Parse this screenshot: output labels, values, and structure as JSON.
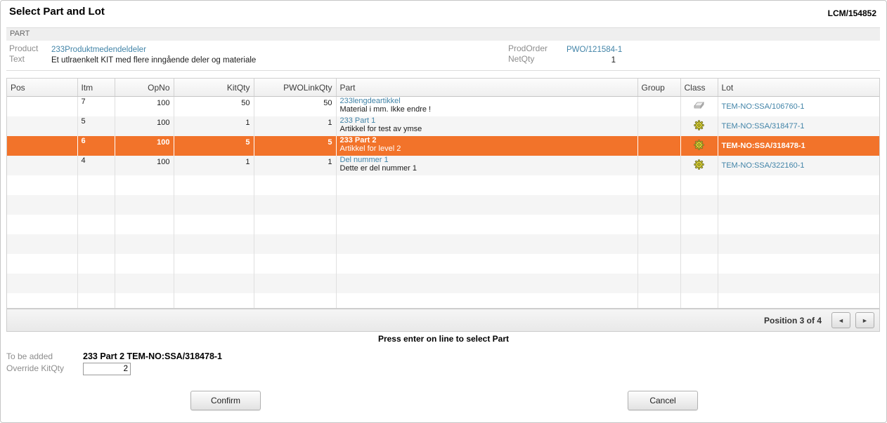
{
  "window": {
    "title": "Select Part and Lot",
    "reference": "LCM/154852"
  },
  "part_section": {
    "header": "PART",
    "product_label": "Product",
    "product_value": "233Produktmedendeldeler",
    "text_label": "Text",
    "text_value": "Et utlraenkelt KIT med flere inngående deler og materiale",
    "prodorder_label": "ProdOrder",
    "prodorder_value": "PWO/121584-1",
    "netqty_label": "NetQty",
    "netqty_value": "1"
  },
  "table": {
    "columns": [
      "Pos",
      "Itm",
      "OpNo",
      "KitQty",
      "PWOLinkQty",
      "Part",
      "Group",
      "Class",
      "Lot"
    ],
    "rows": [
      {
        "pos": "",
        "itm": "7",
        "opno": "100",
        "kitqty": "50",
        "pwolinkqty": "50",
        "part": "233lengdeartikkel",
        "part_desc": "Material i mm. Ikke endre !",
        "group": "",
        "class_icon": "eraser-icon",
        "lot": "TEM-NO:SSA/106760-1",
        "selected": false
      },
      {
        "pos": "",
        "itm": "5",
        "opno": "100",
        "kitqty": "1",
        "pwolinkqty": "1",
        "part": "233 Part 1",
        "part_desc": "Artikkel for test av ymse",
        "group": "",
        "class_icon": "gear-icon",
        "lot": "TEM-NO:SSA/318477-1",
        "selected": false
      },
      {
        "pos": "",
        "itm": "6",
        "opno": "100",
        "kitqty": "5",
        "pwolinkqty": "5",
        "part": "233 Part 2",
        "part_desc": "Artikkel for level 2",
        "group": "",
        "class_icon": "gear-icon",
        "lot": "TEM-NO:SSA/318478-1",
        "selected": true
      },
      {
        "pos": "",
        "itm": "4",
        "opno": "100",
        "kitqty": "1",
        "pwolinkqty": "1",
        "part": "Del nummer 1",
        "part_desc": "Dette er del nummer 1",
        "group": "",
        "class_icon": "gear-icon",
        "lot": "TEM-NO:SSA/322160-1",
        "selected": false
      }
    ]
  },
  "pager": {
    "position_text": "Position 3 of 4",
    "prev_icon": "◄",
    "next_icon": "►"
  },
  "hint": "Press enter on line to select Part",
  "form": {
    "to_be_added_label": "To be added",
    "to_be_added_value": "233 Part 2 TEM-NO:SSA/318478-1",
    "override_label": "Override KitQty",
    "override_value": "2"
  },
  "buttons": {
    "confirm": "Confirm",
    "cancel": "Cancel"
  },
  "colors": {
    "selected_row": "#F2732A",
    "link": "#4284A8",
    "row_stripe": "#F5F5F5"
  }
}
